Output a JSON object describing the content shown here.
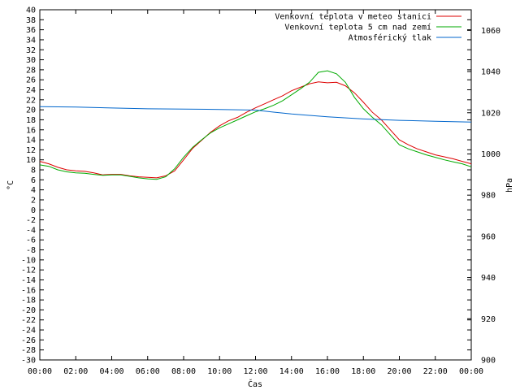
{
  "chart_data": {
    "type": "line",
    "xlabel": "Čas",
    "ylabel_left": "°C",
    "ylabel_right": "hPa",
    "x_ticks": [
      "00:00",
      "02:00",
      "04:00",
      "06:00",
      "08:00",
      "10:00",
      "12:00",
      "14:00",
      "16:00",
      "18:00",
      "20:00",
      "22:00",
      "00:00"
    ],
    "x_range_hours": [
      0,
      24
    ],
    "ylim_left": [
      -30,
      40
    ],
    "ylim_right": [
      900,
      1070
    ],
    "y_ticks_left": [
      -30,
      -28,
      -26,
      -24,
      -22,
      -20,
      -18,
      -16,
      -14,
      -12,
      -10,
      -8,
      -6,
      -4,
      -2,
      0,
      2,
      4,
      6,
      8,
      10,
      12,
      14,
      16,
      18,
      20,
      22,
      24,
      26,
      28,
      30,
      32,
      34,
      36,
      38,
      40
    ],
    "y_ticks_right": [
      900,
      920,
      940,
      960,
      980,
      1000,
      1020,
      1040,
      1060
    ],
    "grid": false,
    "legend_position": "top-right",
    "series": [
      {
        "name": "Venkovní teplota v meteo stanici",
        "color": "#dd0000",
        "axis": "left",
        "x": [
          0,
          0.5,
          1,
          1.5,
          2,
          2.5,
          3,
          3.5,
          4,
          4.5,
          5,
          5.5,
          6,
          6.5,
          7,
          7.5,
          8,
          8.5,
          9,
          9.5,
          10,
          10.5,
          11,
          11.5,
          12,
          12.5,
          13,
          13.5,
          14,
          14.5,
          15,
          15.5,
          16,
          16.5,
          17,
          17.5,
          18,
          18.5,
          19,
          19.5,
          20,
          20.5,
          21,
          21.5,
          22,
          22.5,
          23,
          23.5,
          24
        ],
        "y": [
          9.7,
          9.2,
          8.5,
          8.0,
          7.8,
          7.7,
          7.4,
          7.0,
          7.1,
          7.1,
          6.8,
          6.6,
          6.5,
          6.4,
          6.8,
          7.8,
          10.0,
          12.3,
          13.9,
          15.5,
          16.8,
          17.8,
          18.5,
          19.5,
          20.4,
          21.2,
          22.0,
          22.8,
          23.8,
          24.5,
          25.2,
          25.6,
          25.4,
          25.5,
          24.8,
          23.4,
          21.5,
          19.5,
          18.0,
          16.0,
          14.0,
          13.0,
          12.2,
          11.6,
          11.0,
          10.6,
          10.2,
          9.7,
          9.2
        ]
      },
      {
        "name": "Venkovní teplota 5 cm nad zemí",
        "color": "#00aa00",
        "axis": "left",
        "x": [
          0,
          0.5,
          1,
          1.5,
          2,
          2.5,
          3,
          3.5,
          4,
          4.5,
          5,
          5.5,
          6,
          6.5,
          7,
          7.5,
          8,
          8.5,
          9,
          9.5,
          10,
          10.5,
          11,
          11.5,
          12,
          12.5,
          13,
          13.5,
          14,
          14.5,
          15,
          15.5,
          16,
          16.5,
          17,
          17.5,
          18,
          18.5,
          19,
          19.5,
          20,
          20.5,
          21,
          21.5,
          22,
          22.5,
          23,
          23.5,
          24
        ],
        "y": [
          9.0,
          8.7,
          8.0,
          7.6,
          7.4,
          7.3,
          7.1,
          6.9,
          7.0,
          7.0,
          6.7,
          6.4,
          6.2,
          6.1,
          6.6,
          8.2,
          10.5,
          12.5,
          14.0,
          15.4,
          16.4,
          17.2,
          18.0,
          18.8,
          19.6,
          20.2,
          20.9,
          21.8,
          23.0,
          24.2,
          25.5,
          27.5,
          27.8,
          27.2,
          25.5,
          22.5,
          20.2,
          18.5,
          17.0,
          15.0,
          13.0,
          12.2,
          11.6,
          11.0,
          10.5,
          10.0,
          9.6,
          9.2,
          8.6
        ]
      },
      {
        "name": "Atmosférický tlak",
        "color": "#0066cc",
        "axis": "right",
        "x": [
          0,
          2,
          4,
          6,
          8,
          10,
          12,
          13,
          14,
          16,
          18,
          20,
          22,
          24
        ],
        "y": [
          1023.0,
          1022.8,
          1022.3,
          1021.9,
          1021.8,
          1021.6,
          1021.3,
          1020.3,
          1019.4,
          1018.0,
          1017.0,
          1016.3,
          1015.9,
          1015.5
        ]
      }
    ]
  }
}
